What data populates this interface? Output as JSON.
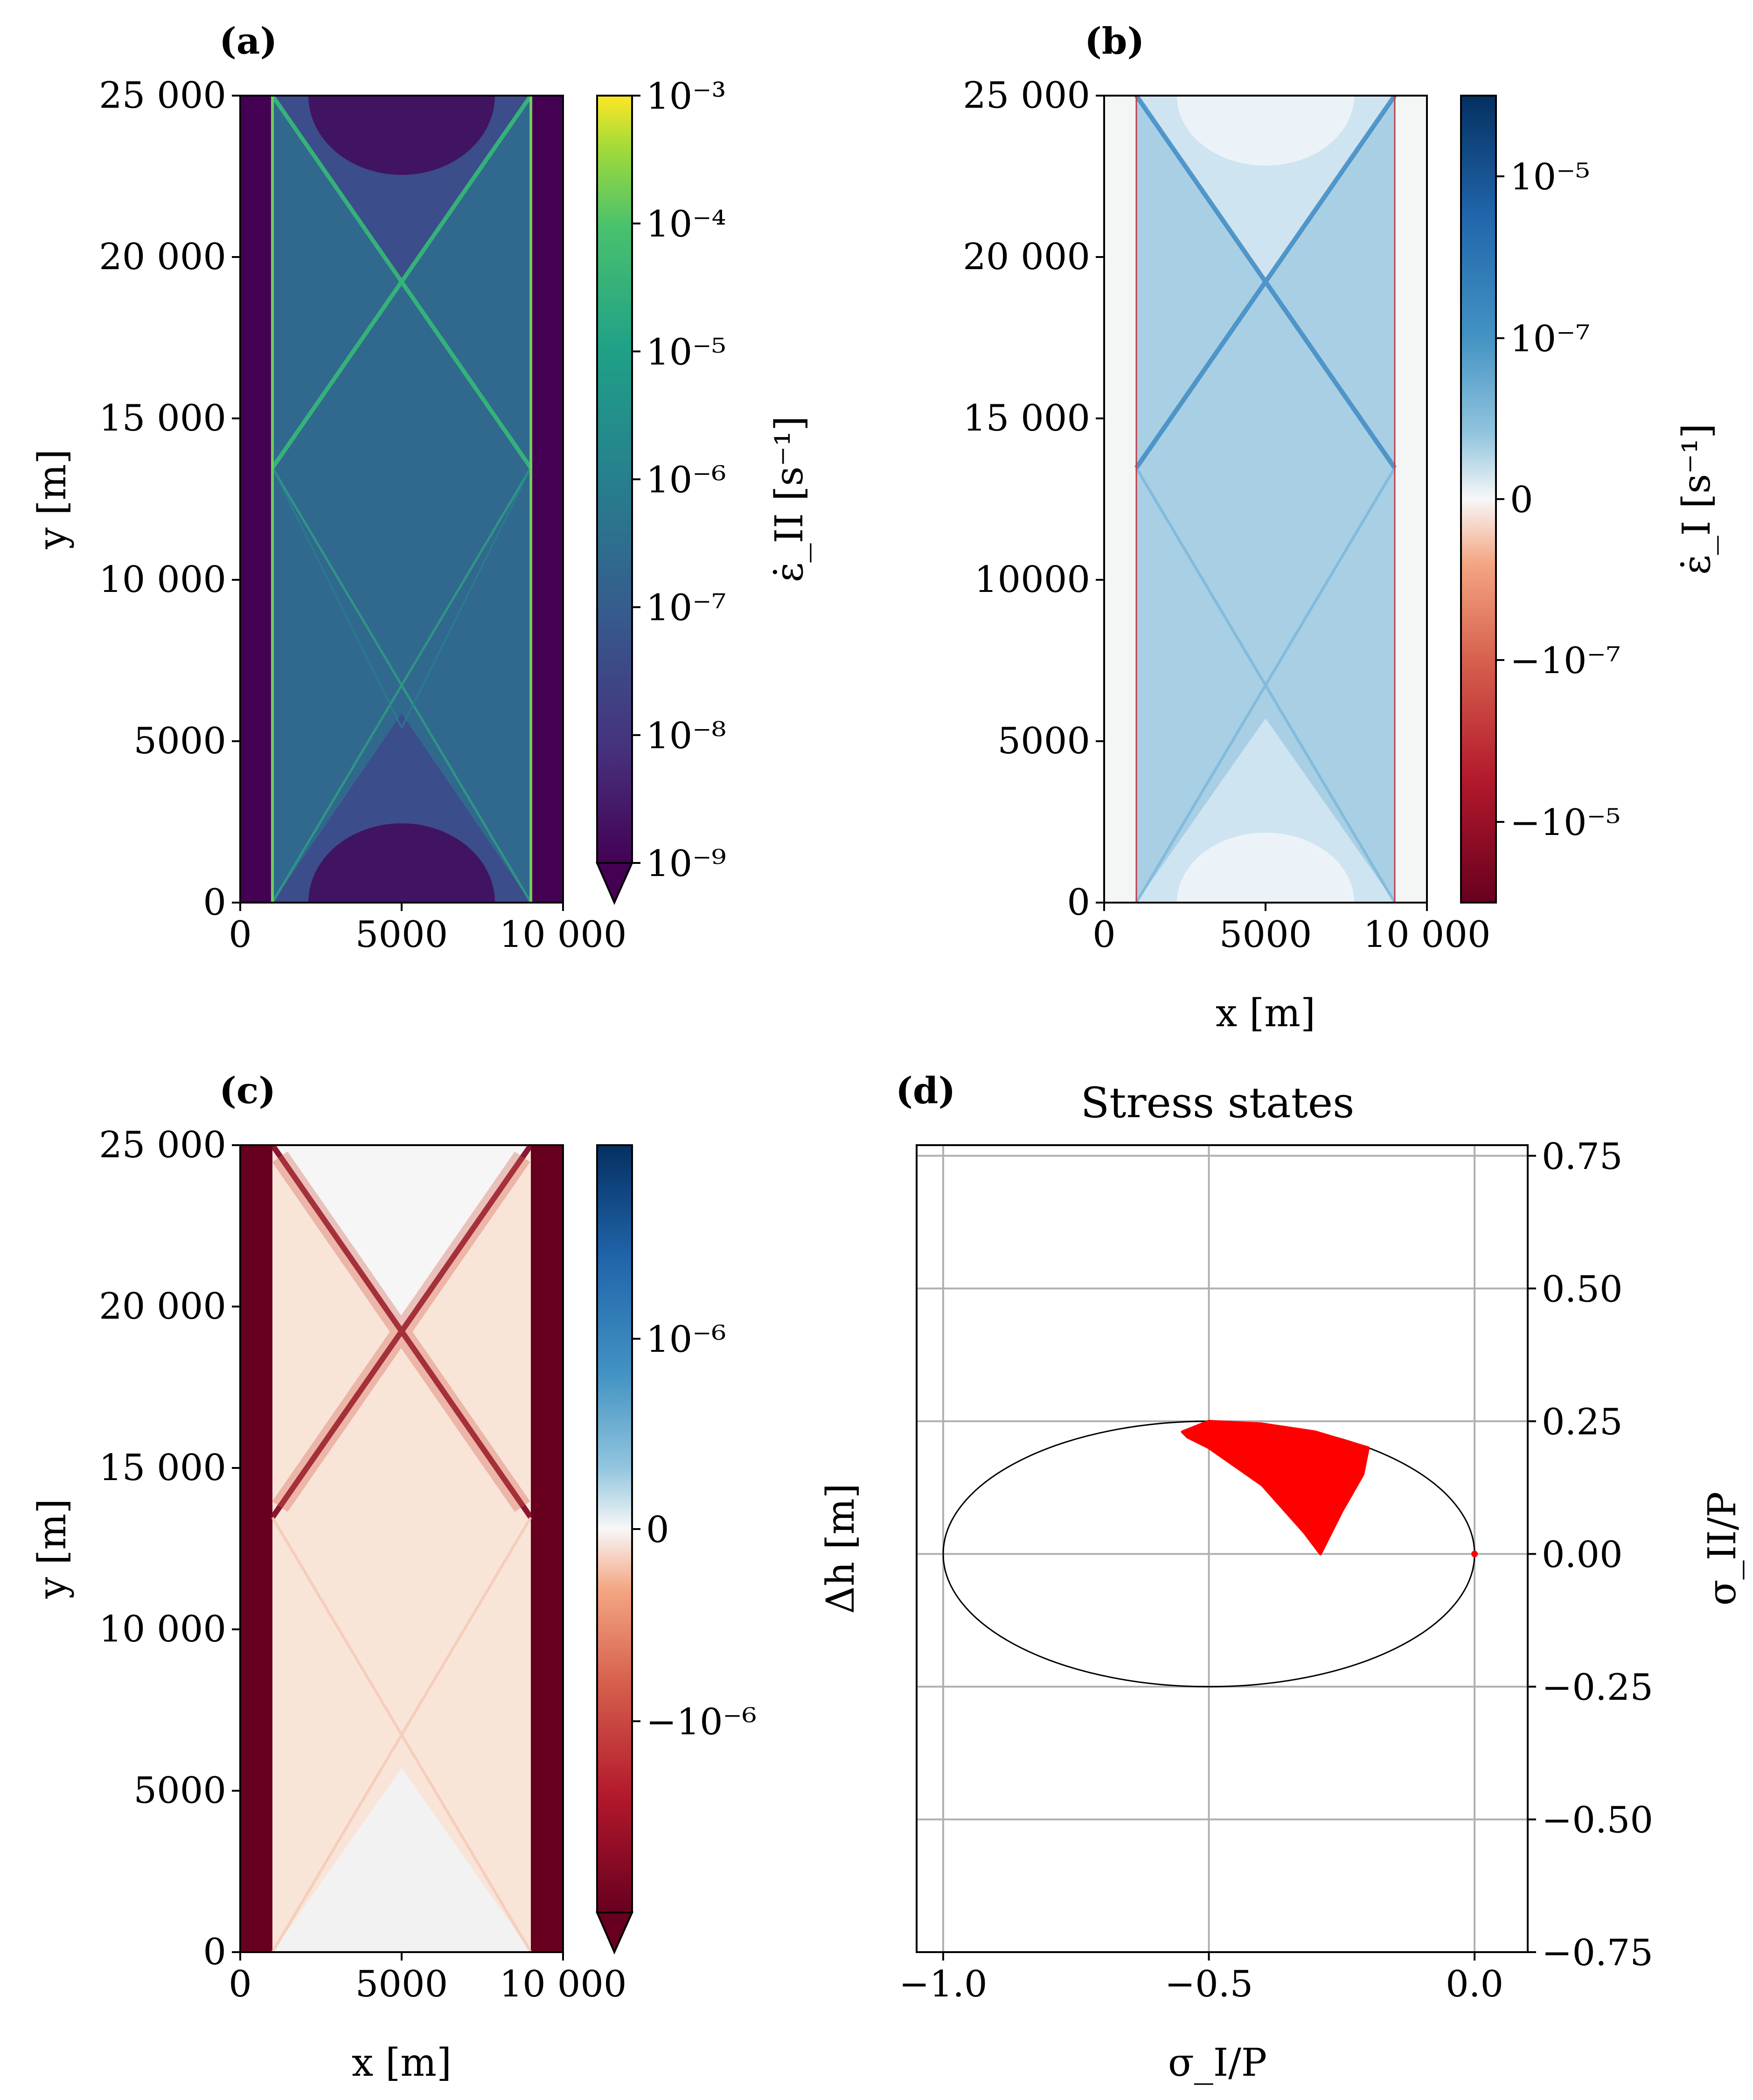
{
  "panels": {
    "a": {
      "label": "(a)"
    },
    "b": {
      "label": "(b)"
    },
    "c": {
      "label": "(c)"
    },
    "d": {
      "label": "(d)",
      "title": "Stress states"
    }
  },
  "axes": {
    "y_label": "y [m]",
    "x_label": "x [m]",
    "x_ticks": [
      "0",
      "5000",
      "10 000"
    ],
    "y_ticks_a": [
      "0",
      "5000",
      "10 000",
      "15 000",
      "20 000",
      "25 000"
    ],
    "y_ticks_b": [
      "0",
      "5000",
      "10000",
      "15 000",
      "20 000",
      "25 000"
    ],
    "y_ticks_c": [
      "0",
      "5000",
      "10 000",
      "15 000",
      "20 000",
      "25 000"
    ]
  },
  "colorbars": {
    "a": {
      "label": "ε̇_II [s⁻¹]",
      "ticks": [
        "10⁻³",
        "10⁻⁴",
        "10⁻⁵",
        "10⁻⁶",
        "10⁻⁷",
        "10⁻⁸",
        "10⁻⁹"
      ],
      "colormap": "viridis"
    },
    "b": {
      "label": "ε̇_I [s⁻¹]",
      "ticks": [
        "10⁻⁵",
        "10⁻⁷",
        "0",
        "−10⁻⁷",
        "−10⁻⁵"
      ],
      "colormap": "RdBu"
    },
    "c": {
      "ticks": [
        "10⁻⁶",
        "0",
        "−10⁻⁶"
      ],
      "colormap": "RdBu"
    }
  },
  "chart_data": [
    {
      "type": "heatmap",
      "panel": "a",
      "quantity": "second invariant strain rate",
      "xlim": [
        0,
        10000
      ],
      "ylim": [
        0,
        25000
      ],
      "clim": [
        1e-09,
        0.001
      ],
      "scale": "log",
      "features": {
        "shear_band_crossings_y": [
          19000,
          6000
        ],
        "band_reflections_y": [
          13000
        ]
      }
    },
    {
      "type": "heatmap",
      "panel": "b",
      "quantity": "first invariant strain rate",
      "xlim": [
        0,
        10000
      ],
      "ylim": [
        0,
        25000
      ],
      "scale": "symlog"
    },
    {
      "type": "heatmap",
      "panel": "c",
      "xlim": [
        0,
        10000
      ],
      "ylim": [
        0,
        25000
      ],
      "scale": "symlog"
    },
    {
      "type": "scatter",
      "panel": "d",
      "title": "Stress states",
      "xlabel": "σ_I/P",
      "ylabel_left": "Δh [m]",
      "ylabel_right": "σ_II/P",
      "xlim": [
        -1.05,
        0.1
      ],
      "ylim": [
        -0.75,
        0.77
      ],
      "x_ticks": [
        "−1.0",
        "−0.5",
        "0.0"
      ],
      "y_ticks": [
        "0.75",
        "0.50",
        "0.25",
        "0.00",
        "−0.25",
        "−0.50",
        "−0.75"
      ],
      "grid": true,
      "yield_ellipse": {
        "center": [
          -0.5,
          0
        ],
        "semi_axes": [
          0.5,
          0.25
        ]
      },
      "point_cloud_outline": [
        [
          -0.55,
          0.23
        ],
        [
          -0.5,
          0.25
        ],
        [
          -0.4,
          0.245
        ],
        [
          -0.3,
          0.23
        ],
        [
          -0.2,
          0.2
        ],
        [
          -0.21,
          0.15
        ],
        [
          -0.25,
          0.08
        ],
        [
          -0.29,
          0.0
        ],
        [
          -0.32,
          0.04
        ],
        [
          -0.4,
          0.13
        ],
        [
          -0.5,
          0.2
        ],
        [
          -0.54,
          0.22
        ]
      ],
      "extra_point": [
        0.0,
        0.0
      ],
      "point_color": "#ff0000"
    }
  ]
}
